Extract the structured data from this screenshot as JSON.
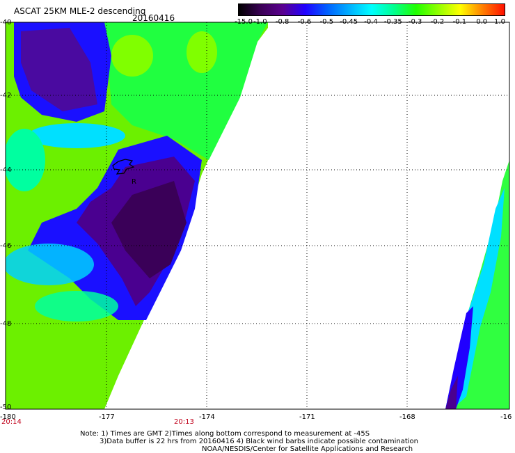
{
  "header": {
    "title": "ASCAT 25KM MLE-2 descending",
    "date": "20160416"
  },
  "colorbar": {
    "labels": [
      "-15.0",
      "-1.0",
      "-0.8",
      "-0.6",
      "-0.5",
      "-0.45",
      "-0.4",
      "-0.35",
      "-0.3",
      "-0.2",
      "-0.1",
      "0.0",
      "1.0"
    ],
    "colors": [
      "#000000",
      "#3a0055",
      "#5a0090",
      "#2000ff",
      "#0060ff",
      "#00b0ff",
      "#00ffff",
      "#00ff90",
      "#20ff00",
      "#90ff00",
      "#ffff00",
      "#ff8000",
      "#ff1000"
    ]
  },
  "axes": {
    "lat_labels": [
      "-40",
      "-42",
      "-44",
      "-46",
      "-48",
      "-50"
    ],
    "lon_labels": [
      "-180",
      "-177",
      "-174",
      "-171",
      "-168",
      "-16"
    ]
  },
  "times": {
    "left": "20:14",
    "mid": "20:13"
  },
  "marker": {
    "label": "R"
  },
  "notes": {
    "line1": "Note: 1) Times are GMT 2)Times along bottom correspond to measurement at -45S",
    "line2": "3)Data buffer is 22 hrs from 20160416 4) Black wind barbs indicate possible contamination",
    "line3": "NOAA/NESDIS/Center for Satellite Applications and Research"
  }
}
